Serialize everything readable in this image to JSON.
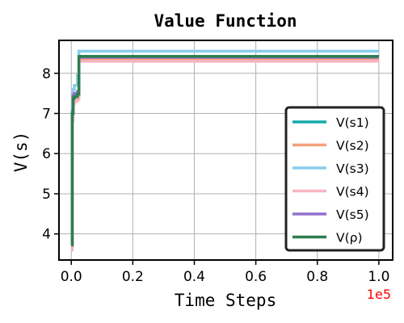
{
  "chart_data": {
    "type": "line",
    "title": "Value Function",
    "xlabel": "Time Steps",
    "ylabel": "V(s)",
    "x_offset_label": "1e5",
    "x_offset_color": "#ff0000",
    "xlim": [
      -0.04,
      1.045
    ],
    "ylim": [
      3.35,
      8.82
    ],
    "xticks": [
      0.0,
      0.2,
      0.4,
      0.6,
      0.8,
      1.0
    ],
    "xtick_labels": [
      "0.0",
      "0.2",
      "0.4",
      "0.6",
      "0.8",
      "1.0"
    ],
    "yticks": [
      4,
      5,
      6,
      7,
      8
    ],
    "ytick_labels": [
      "4",
      "5",
      "6",
      "7",
      "8"
    ],
    "grid": true,
    "legend_position": "lower-right",
    "series": [
      {
        "name": "V(s1)",
        "color": "#17a9a9",
        "x": [
          0,
          0.003,
          0.006,
          0.01,
          0.02,
          0.025,
          1.0
        ],
        "y": [
          3.75,
          7.0,
          7.4,
          7.45,
          7.5,
          8.42,
          8.42
        ]
      },
      {
        "name": "V(s2)",
        "color": "#f4a07c",
        "x": [
          0,
          0.003,
          0.006,
          0.01,
          0.02,
          0.025,
          1.0
        ],
        "y": [
          3.7,
          6.9,
          7.3,
          7.35,
          7.4,
          8.35,
          8.35
        ]
      },
      {
        "name": "V(s3)",
        "color": "#87ceeb",
        "x": [
          0,
          0.003,
          0.006,
          0.01,
          0.02,
          0.025,
          1.0
        ],
        "y": [
          3.85,
          7.2,
          7.6,
          7.7,
          7.95,
          8.55,
          8.55
        ]
      },
      {
        "name": "V(s4)",
        "color": "#f7b5c0",
        "x": [
          0,
          0.003,
          0.006,
          0.01,
          0.02,
          0.025,
          1.0
        ],
        "y": [
          3.6,
          6.8,
          7.25,
          7.3,
          7.35,
          8.3,
          8.3
        ]
      },
      {
        "name": "V(s5)",
        "color": "#9170cc",
        "x": [
          0,
          0.003,
          0.006,
          0.01,
          0.02,
          0.025,
          1.0
        ],
        "y": [
          3.72,
          7.05,
          7.45,
          7.5,
          7.55,
          8.4,
          8.4
        ]
      },
      {
        "name": "V(ρ)",
        "color": "#2e7d4f",
        "x": [
          0,
          0.003,
          0.006,
          0.01,
          0.02,
          0.025,
          1.0
        ],
        "y": [
          3.73,
          7.0,
          7.38,
          7.42,
          7.48,
          8.42,
          8.42
        ]
      }
    ]
  }
}
